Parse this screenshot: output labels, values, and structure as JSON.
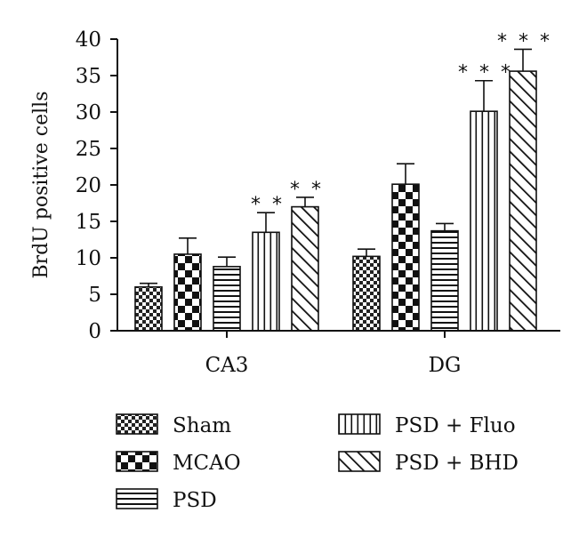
{
  "chart_data": {
    "type": "bar",
    "title": "",
    "xlabel": "",
    "ylabel": "BrdU positive cells",
    "ylim": [
      0,
      40
    ],
    "yticks": [
      0,
      5,
      10,
      15,
      20,
      25,
      30,
      35,
      40
    ],
    "grid": false,
    "legend_position": "bottom",
    "categories": [
      "CA3",
      "DG"
    ],
    "series": [
      {
        "name": "Sham",
        "pattern": "small-checker",
        "values": [
          6,
          10.2
        ],
        "errors": [
          0.5,
          1.0
        ],
        "significance": [
          "",
          ""
        ]
      },
      {
        "name": "MCAO",
        "pattern": "large-checker",
        "values": [
          10.5,
          20.1
        ],
        "errors": [
          2.2,
          2.8
        ],
        "significance": [
          "",
          ""
        ]
      },
      {
        "name": "PSD",
        "pattern": "horizontal-lines",
        "values": [
          8.8,
          13.7
        ],
        "errors": [
          1.3,
          1.0
        ],
        "significance": [
          "",
          ""
        ]
      },
      {
        "name": "PSD + Fluo",
        "pattern": "vertical-lines",
        "values": [
          13.5,
          30.1
        ],
        "errors": [
          2.7,
          4.2
        ],
        "significance": [
          "**",
          "***"
        ]
      },
      {
        "name": "PSD + BHD",
        "pattern": "diagonal-lines",
        "values": [
          17.0,
          35.6
        ],
        "errors": [
          1.3,
          3.0
        ],
        "significance": [
          "**",
          "***"
        ]
      }
    ]
  }
}
